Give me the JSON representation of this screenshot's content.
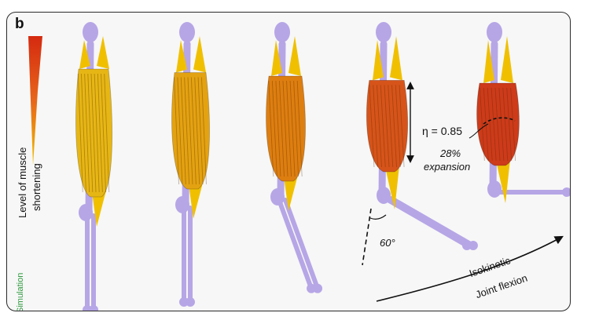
{
  "panel": {
    "letter": "b"
  },
  "legend": {
    "line1": "Level of muscle",
    "line2": "shortening",
    "gradient_colors": [
      "#d42a10",
      "#f0c000"
    ]
  },
  "condition_label": "Simulation",
  "colors": {
    "bone": "#b6a6e6",
    "tendon": "#f0c000",
    "accent_text": "#2e9a3e"
  },
  "annotations": {
    "eta": "η = 0.85",
    "expansion_pct": "28%",
    "expansion_word": "expansion",
    "angle": "60°",
    "arrow_line1": "Isokinetic",
    "arrow_line2": "Joint flexion"
  },
  "stages": [
    {
      "muscle_color": "#e6b615",
      "shortening_level": 0.0,
      "flexion_deg": 0
    },
    {
      "muscle_color": "#e3a211",
      "shortening_level": 0.25,
      "flexion_deg": 0
    },
    {
      "muscle_color": "#dd7e10",
      "shortening_level": 0.5,
      "flexion_deg": 20
    },
    {
      "muscle_color": "#d6541a",
      "shortening_level": 0.8,
      "flexion_deg": 60
    },
    {
      "muscle_color": "#cd3b1a",
      "shortening_level": 1.0,
      "flexion_deg": 90
    }
  ]
}
